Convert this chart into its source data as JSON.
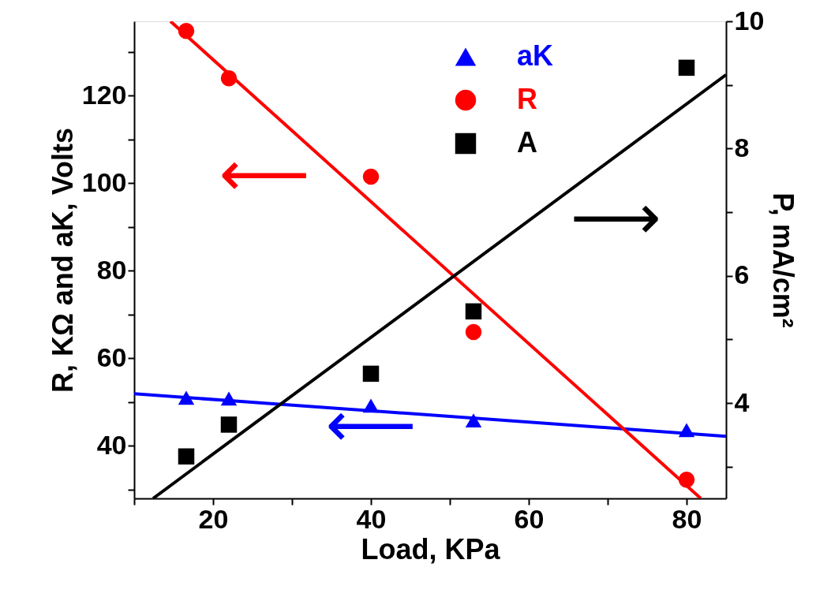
{
  "chart_data": {
    "type": "scatter",
    "xlabel": "Load, KPa",
    "ylabel": "R, KΩ and aK, Volts",
    "y2label": "P, mA/cm²",
    "xlim": [
      10,
      85
    ],
    "xticks": [
      {
        "value": 10,
        "label": null
      },
      20,
      {
        "value": 30,
        "label": null
      },
      40,
      {
        "value": 50,
        "label": null
      },
      60,
      {
        "value": 70,
        "label": null
      },
      80
    ],
    "ylim": [
      28,
      137
    ],
    "yticks": [
      {
        "value": 30,
        "label": null
      },
      40,
      {
        "value": 50,
        "label": null
      },
      60,
      {
        "value": 70,
        "label": null
      },
      80,
      {
        "value": 90,
        "label": null
      },
      100,
      {
        "value": 110,
        "label": null
      },
      120,
      {
        "value": 130,
        "label": null
      }
    ],
    "y2lim": [
      2.5,
      10
    ],
    "y2ticks": [
      {
        "value": 3,
        "label": null
      },
      4,
      {
        "value": 5,
        "label": null
      },
      6,
      {
        "value": 7,
        "label": null
      },
      8,
      {
        "value": 9,
        "label": null
      },
      10
    ],
    "legend": "top",
    "grid": false,
    "series": [
      {
        "name": "aK",
        "marker": "triangle",
        "color": "#0000ff",
        "x": [
          16.6,
          22,
          40,
          53,
          80
        ],
        "values": [
          51.0,
          50.8,
          49.2,
          45.8,
          43.6
        ]
      },
      {
        "name": "R",
        "marker": "circle",
        "color": "#ff0000",
        "x": [
          16.6,
          22,
          40,
          53,
          80
        ],
        "values": [
          134.8,
          124.0,
          101.5,
          66.0,
          32.3
        ]
      },
      {
        "name": "A",
        "marker": "square",
        "color": "#000000",
        "axis": "y2",
        "x": [
          16.6,
          22,
          40,
          53,
          80
        ],
        "values": [
          3.16,
          3.66,
          4.46,
          5.44,
          9.27
        ]
      },
      {
        "type": "line",
        "color": "#0000ff",
        "x": [
          10,
          85
        ],
        "values": [
          51.9,
          42.2
        ]
      },
      {
        "type": "line",
        "color": "#ff0000",
        "x": [
          14.6,
          81.8
        ],
        "values": [
          137,
          28
        ]
      },
      {
        "type": "line",
        "color": "#000000",
        "axis": "y2",
        "x": [
          12.4,
          85
        ],
        "values": [
          2.5,
          9.16
        ]
      }
    ],
    "annotations": [
      "⟵",
      "⟵",
      "⟶"
    ]
  }
}
